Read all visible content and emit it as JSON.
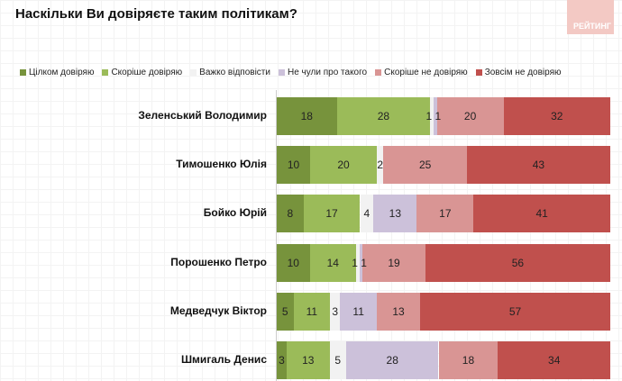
{
  "title": "Наскільки Ви довіряєте таким політикам?",
  "logo_text": "РЕЙТИНГ",
  "chart_data": {
    "type": "bar",
    "orientation": "horizontal",
    "stacked": true,
    "title": "Наскільки Ви довіряєте таким політикам?",
    "legend_position": "top",
    "categories": [
      "Зеленський Володимир",
      "Тимошенко Юлія",
      "Бойко Юрій",
      "Порошенко Петро",
      "Медведчук Віктор",
      "Шмигаль Денис"
    ],
    "series": [
      {
        "name": "Цілком довіряю",
        "color": "#77933c",
        "values": [
          18,
          10,
          8,
          10,
          5,
          3
        ]
      },
      {
        "name": "Скоріше довіряю",
        "color": "#9bbb59",
        "values": [
          28,
          20,
          17,
          14,
          11,
          13
        ]
      },
      {
        "name": "Важко відповісти",
        "color": "#f2f2f2",
        "values": [
          1,
          2,
          4,
          1,
          3,
          5
        ]
      },
      {
        "name": "Не чули про такого",
        "color": "#ccc1da",
        "values": [
          1,
          0,
          13,
          1,
          11,
          28
        ]
      },
      {
        "name": "Скоріше не довіряю",
        "color": "#d99594",
        "values": [
          20,
          25,
          17,
          19,
          13,
          18
        ]
      },
      {
        "name": "Зовсім не довіряю",
        "color": "#c0504d",
        "values": [
          32,
          43,
          41,
          56,
          57,
          34
        ]
      }
    ]
  }
}
